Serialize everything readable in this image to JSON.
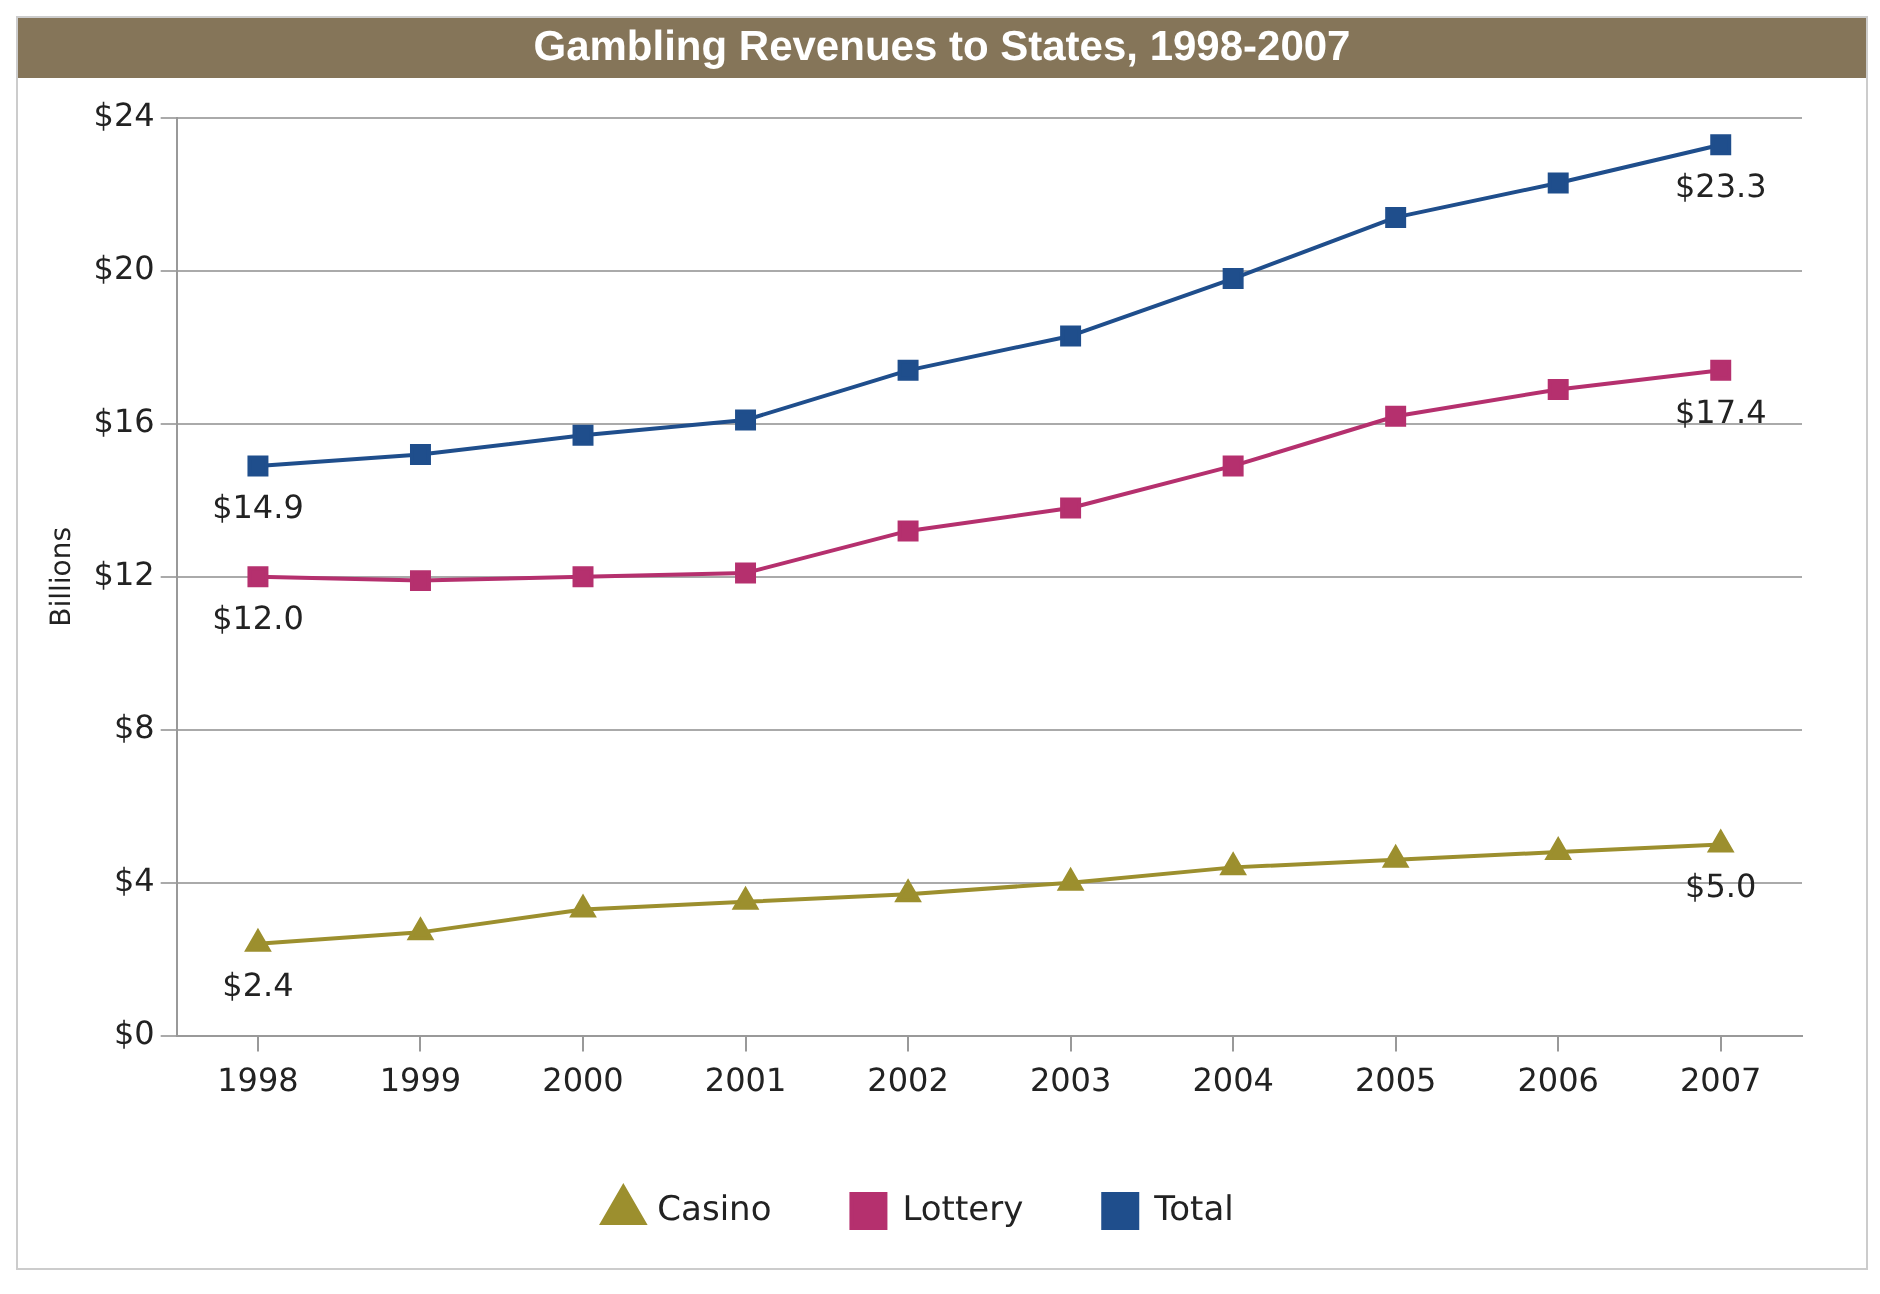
{
  "chart_data": {
    "type": "line",
    "title": "Gambling Revenues to States, 1998-2007",
    "ylabel": "Billions",
    "categories": [
      "1998",
      "1999",
      "2000",
      "2001",
      "2002",
      "2003",
      "2004",
      "2005",
      "2006",
      "2007"
    ],
    "series": [
      {
        "name": "Casino",
        "color": "#9c8f2e",
        "marker": "triangle",
        "values": [
          2.4,
          2.7,
          3.3,
          3.5,
          3.7,
          4.0,
          4.4,
          4.6,
          4.8,
          5.0
        ],
        "value_labels": [
          "$2.4",
          null,
          null,
          null,
          null,
          null,
          null,
          null,
          null,
          "$5.0"
        ]
      },
      {
        "name": "Lottery",
        "color": "#b5306e",
        "marker": "square",
        "values": [
          12.0,
          11.9,
          12.0,
          12.1,
          13.2,
          13.8,
          14.9,
          16.2,
          16.9,
          17.4
        ],
        "value_labels": [
          "$12.0",
          null,
          null,
          null,
          null,
          null,
          null,
          null,
          null,
          "$17.4"
        ]
      },
      {
        "name": "Total",
        "color": "#1f4e8c",
        "marker": "square",
        "values": [
          14.9,
          15.2,
          15.7,
          16.1,
          17.4,
          18.3,
          19.8,
          21.4,
          22.3,
          23.3
        ],
        "value_labels": [
          "$14.9",
          null,
          null,
          null,
          null,
          null,
          null,
          null,
          null,
          "$23.3"
        ]
      }
    ],
    "ylim": [
      0,
      24
    ],
    "yticks": [
      {
        "value": 0,
        "label": "$0"
      },
      {
        "value": 4,
        "label": "$4"
      },
      {
        "value": 8,
        "label": "$8"
      },
      {
        "value": 12,
        "label": "$12"
      },
      {
        "value": 16,
        "label": "$16"
      },
      {
        "value": 20,
        "label": "$20"
      },
      {
        "value": 24,
        "label": "$24"
      }
    ],
    "grid": "y",
    "legend": "bottom",
    "line_style": "solid"
  }
}
